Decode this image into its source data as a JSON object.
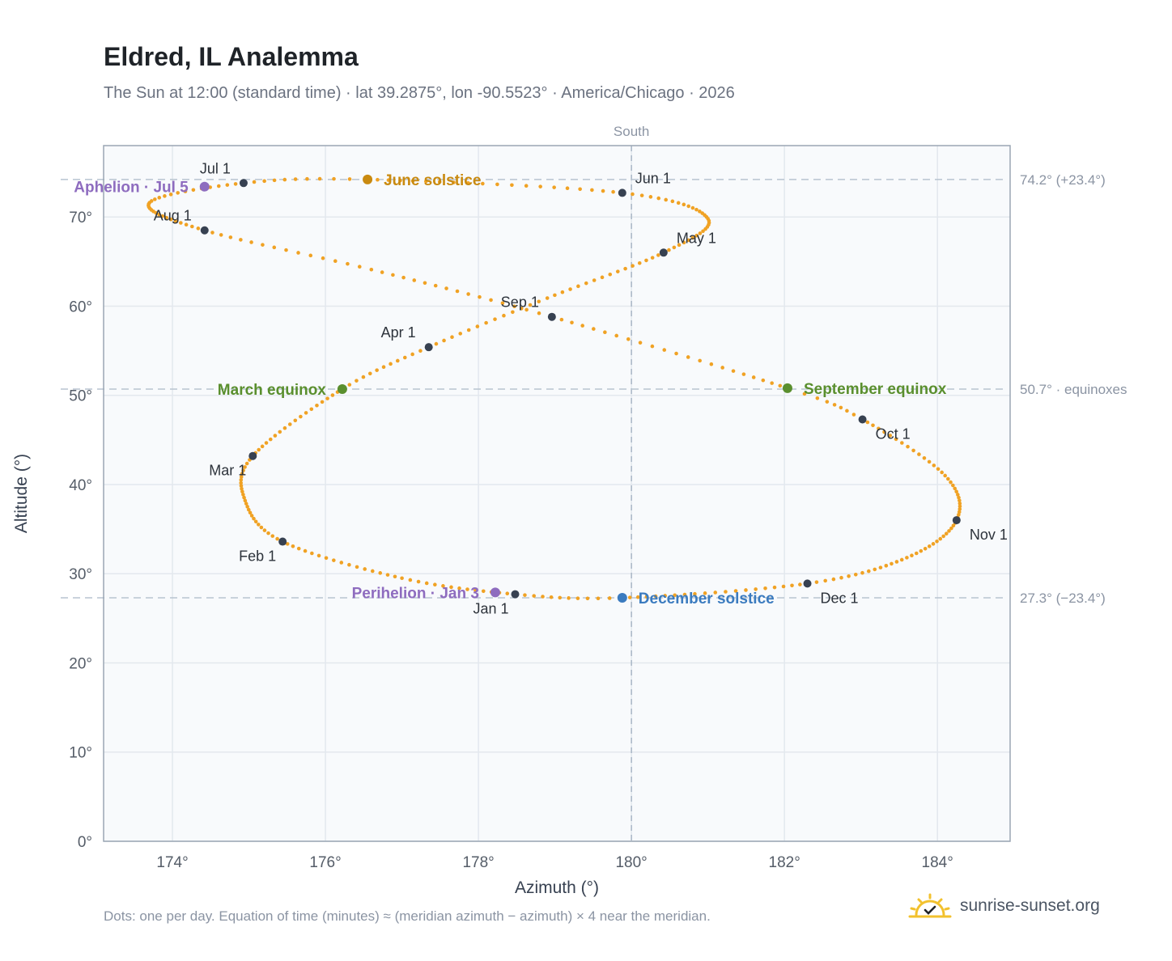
{
  "header": {
    "title": "Eldred, IL Analemma",
    "subtitle": "The Sun at 12:00 (standard time) · lat 39.2875°, lon -90.5523° · America/Chicago · 2026"
  },
  "footer": {
    "footnote": "Dots: one per day. Equation of time (minutes) ≈ (meridian azimuth − azimuth) × 4 near the meridian.",
    "brand": "sunrise-sunset.org",
    "brand_icon": "sun-check-icon"
  },
  "colors": {
    "path": "#f0a224",
    "month_marker": "#374151",
    "equinox": "#5a8f2e",
    "june_solstice": "#c98a10",
    "december_solstice": "#3b7bbf",
    "apsis": "#8e6cbf",
    "grid": "#e3e8ee",
    "reference_line": "#b8c4d0",
    "plot_bg": "#f8fafc"
  },
  "chart_data": {
    "type": "scatter",
    "xlabel": "Azimuth (°)",
    "ylabel": "Altitude (°)",
    "xlim": [
      173.1,
      184.95
    ],
    "ylim": [
      0,
      78
    ],
    "xticks": [
      174,
      176,
      178,
      180,
      182,
      184
    ],
    "xtick_labels": [
      "174°",
      "176°",
      "178°",
      "180°",
      "182°",
      "184°"
    ],
    "yticks": [
      0,
      10,
      20,
      30,
      40,
      50,
      60,
      70
    ],
    "ytick_labels": [
      "0°",
      "10°",
      "20°",
      "30°",
      "40°",
      "50°",
      "60°",
      "70°"
    ],
    "grid": true,
    "meridian": {
      "azimuth": 180,
      "label": "South"
    },
    "reference_lines": [
      {
        "altitude": 74.2,
        "label": "74.2° (+23.4°)"
      },
      {
        "altitude": 50.7,
        "label": "50.7° · equinoxes"
      },
      {
        "altitude": 27.3,
        "label": "27.3° (−23.4°)"
      }
    ],
    "path_description_points": [
      {
        "day": 1,
        "azimuth": 178.48,
        "altitude": 27.7
      },
      {
        "day": 15,
        "azimuth": 177.0,
        "altitude": 29.5
      },
      {
        "day": 32,
        "azimuth": 175.44,
        "altitude": 33.6
      },
      {
        "day": 46,
        "azimuth": 174.95,
        "altitude": 38.2
      },
      {
        "day": 60,
        "azimuth": 175.05,
        "altitude": 43.2
      },
      {
        "day": 79,
        "azimuth": 176.22,
        "altitude": 50.7
      },
      {
        "day": 91,
        "azimuth": 177.35,
        "altitude": 55.4
      },
      {
        "day": 105,
        "azimuth": 178.9,
        "altitude": 60.9
      },
      {
        "day": 121,
        "azimuth": 180.42,
        "altitude": 66.0
      },
      {
        "day": 136,
        "azimuth": 181.0,
        "altitude": 69.8
      },
      {
        "day": 152,
        "azimuth": 179.88,
        "altitude": 72.7
      },
      {
        "day": 172,
        "azimuth": 176.55,
        "altitude": 74.2
      },
      {
        "day": 182,
        "azimuth": 174.93,
        "altitude": 73.8
      },
      {
        "day": 196,
        "azimuth": 173.7,
        "altitude": 71.6
      },
      {
        "day": 213,
        "azimuth": 174.42,
        "altitude": 68.5
      },
      {
        "day": 228,
        "azimuth": 176.6,
        "altitude": 64.1
      },
      {
        "day": 244,
        "azimuth": 178.96,
        "altitude": 58.8
      },
      {
        "day": 266,
        "azimuth": 182.04,
        "altitude": 50.8
      },
      {
        "day": 274,
        "azimuth": 183.02,
        "altitude": 47.3
      },
      {
        "day": 290,
        "azimuth": 184.1,
        "altitude": 41.0
      },
      {
        "day": 305,
        "azimuth": 184.25,
        "altitude": 36.0
      },
      {
        "day": 320,
        "azimuth": 183.6,
        "altitude": 31.8
      },
      {
        "day": 335,
        "azimuth": 182.3,
        "altitude": 28.9
      },
      {
        "day": 355,
        "azimuth": 179.88,
        "altitude": 27.3
      },
      {
        "day": 366,
        "azimuth": 178.48,
        "altitude": 27.7
      }
    ],
    "month_markers": [
      {
        "label": "Jan 1",
        "azimuth": 178.48,
        "altitude": 27.7,
        "label_pos": "below-left"
      },
      {
        "label": "Feb 1",
        "azimuth": 175.44,
        "altitude": 33.6,
        "label_pos": "below-left"
      },
      {
        "label": "Mar 1",
        "azimuth": 175.05,
        "altitude": 43.2,
        "label_pos": "below-left"
      },
      {
        "label": "Apr 1",
        "azimuth": 177.35,
        "altitude": 55.4,
        "label_pos": "above-left"
      },
      {
        "label": "May 1",
        "azimuth": 180.42,
        "altitude": 66.0,
        "label_pos": "above-right"
      },
      {
        "label": "Jun 1",
        "azimuth": 179.88,
        "altitude": 72.7,
        "label_pos": "above-right"
      },
      {
        "label": "Jul 1",
        "azimuth": 174.93,
        "altitude": 73.8,
        "label_pos": "above-left"
      },
      {
        "label": "Aug 1",
        "azimuth": 174.42,
        "altitude": 68.5,
        "label_pos": "above-left"
      },
      {
        "label": "Sep 1",
        "azimuth": 178.96,
        "altitude": 58.8,
        "label_pos": "above-left"
      },
      {
        "label": "Oct 1",
        "azimuth": 183.02,
        "altitude": 47.3,
        "label_pos": "below-right"
      },
      {
        "label": "Nov 1",
        "azimuth": 184.25,
        "altitude": 36.0,
        "label_pos": "below-right"
      },
      {
        "label": "Dec 1",
        "azimuth": 182.3,
        "altitude": 28.9,
        "label_pos": "below-right"
      }
    ],
    "events": [
      {
        "label": "March equinox",
        "azimuth": 176.22,
        "altitude": 50.7,
        "color": "#5a8f2e",
        "label_side": "left"
      },
      {
        "label": "September equinox",
        "azimuth": 182.04,
        "altitude": 50.8,
        "color": "#5a8f2e",
        "label_side": "right"
      },
      {
        "label": "June solstice",
        "azimuth": 176.55,
        "altitude": 74.2,
        "color": "#c98a10",
        "label_side": "right"
      },
      {
        "label": "December solstice",
        "azimuth": 179.88,
        "altitude": 27.3,
        "color": "#3b7bbf",
        "label_side": "right"
      },
      {
        "label": "Aphelion · Jul 5",
        "azimuth": 174.42,
        "altitude": 73.4,
        "color": "#8e6cbf",
        "label_side": "left"
      },
      {
        "label": "Perihelion · Jan 3",
        "azimuth": 178.22,
        "altitude": 27.9,
        "color": "#8e6cbf",
        "label_side": "left"
      }
    ]
  }
}
